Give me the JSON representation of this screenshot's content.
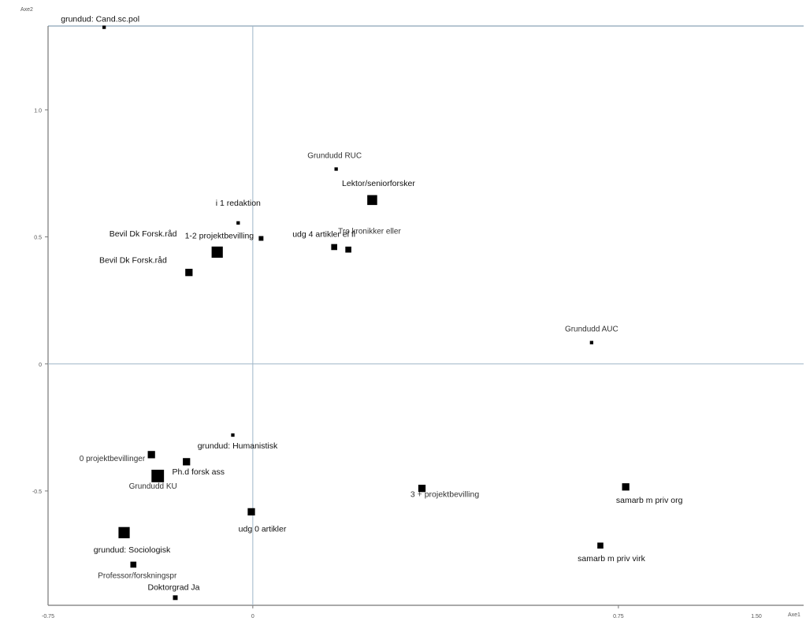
{
  "chart_data": {
    "type": "scatter",
    "xlabel": "Axe1",
    "ylabel": "Axe2",
    "xlim": [
      -0.42,
      1.13
    ],
    "ylim": [
      -0.95,
      1.33
    ],
    "x_ticks": [
      {
        "value": -0.75,
        "label": "-0.75"
      },
      {
        "value": 0,
        "label": "0"
      },
      {
        "value": 0.75,
        "label": "0.75"
      },
      {
        "value": 1.5,
        "label": "1.50"
      }
    ],
    "y_ticks": [
      {
        "value": 1.0,
        "label": "1.0"
      },
      {
        "value": 0.5,
        "label": "0.5"
      },
      {
        "value": 0,
        "label": "0"
      },
      {
        "value": -0.5,
        "label": "-0.5"
      }
    ],
    "grid": false,
    "reference_lines": [
      {
        "axis": "x",
        "value": 0
      },
      {
        "axis": "y",
        "value": 0
      }
    ],
    "marker_color": "#000000",
    "points": [
      {
        "label": "grundud: Cand.sc.pol",
        "x": -0.305,
        "y": 1.325,
        "size": 2
      },
      {
        "label": "Grundudd RUC",
        "x": 0.171,
        "y": 0.767,
        "size": 2
      },
      {
        "label": "Lektor/seniorforsker",
        "x": 0.245,
        "y": 0.645,
        "size": 7
      },
      {
        "label": "i 1 redaktion",
        "x": -0.03,
        "y": 0.555,
        "size": 2
      },
      {
        "label": "1-2 projektbevilling",
        "x": 0.017,
        "y": 0.494,
        "size": 3
      },
      {
        "label": "udg 4 artikler el fl",
        "x": 0.167,
        "y": 0.46,
        "size": 4
      },
      {
        "label": "Tro kronikker eller",
        "x": 0.196,
        "y": 0.45,
        "size": 4
      },
      {
        "label": "Bevil Dk Forsk.råd",
        "x": -0.073,
        "y": 0.44,
        "size": 8
      },
      {
        "label": "Bevil Dk Forsk.råd",
        "x": -0.131,
        "y": 0.36,
        "size": 5
      },
      {
        "label": "Grundudd AUC",
        "x": 0.695,
        "y": 0.084,
        "size": 2
      },
      {
        "label": "grundud: Humanistisk",
        "x": -0.041,
        "y": -0.28,
        "size": 2
      },
      {
        "label": "0 projektbevillinger",
        "x": -0.208,
        "y": -0.357,
        "size": 5
      },
      {
        "label": "Ph.d forsk ass",
        "x": -0.136,
        "y": -0.385,
        "size": 5
      },
      {
        "label": "Grundudd KU",
        "x": -0.195,
        "y": -0.441,
        "size": 9
      },
      {
        "label": "3 + projektbevilling",
        "x": 0.347,
        "y": -0.49,
        "size": 5
      },
      {
        "label": "samarb m priv org",
        "x": 0.765,
        "y": -0.484,
        "size": 5
      },
      {
        "label": "udg 0 artikler",
        "x": -0.003,
        "y": -0.582,
        "size": 5
      },
      {
        "label": "grundud: Sociologisk",
        "x": -0.264,
        "y": -0.664,
        "size": 8
      },
      {
        "label": "samarb m priv virk",
        "x": 0.713,
        "y": -0.715,
        "size": 4
      },
      {
        "label": "Professor/forskningspr",
        "x": -0.245,
        "y": -0.79,
        "size": 4
      },
      {
        "label": "Doktorgrad Ja",
        "x": -0.159,
        "y": -0.92,
        "size": 3
      }
    ]
  }
}
